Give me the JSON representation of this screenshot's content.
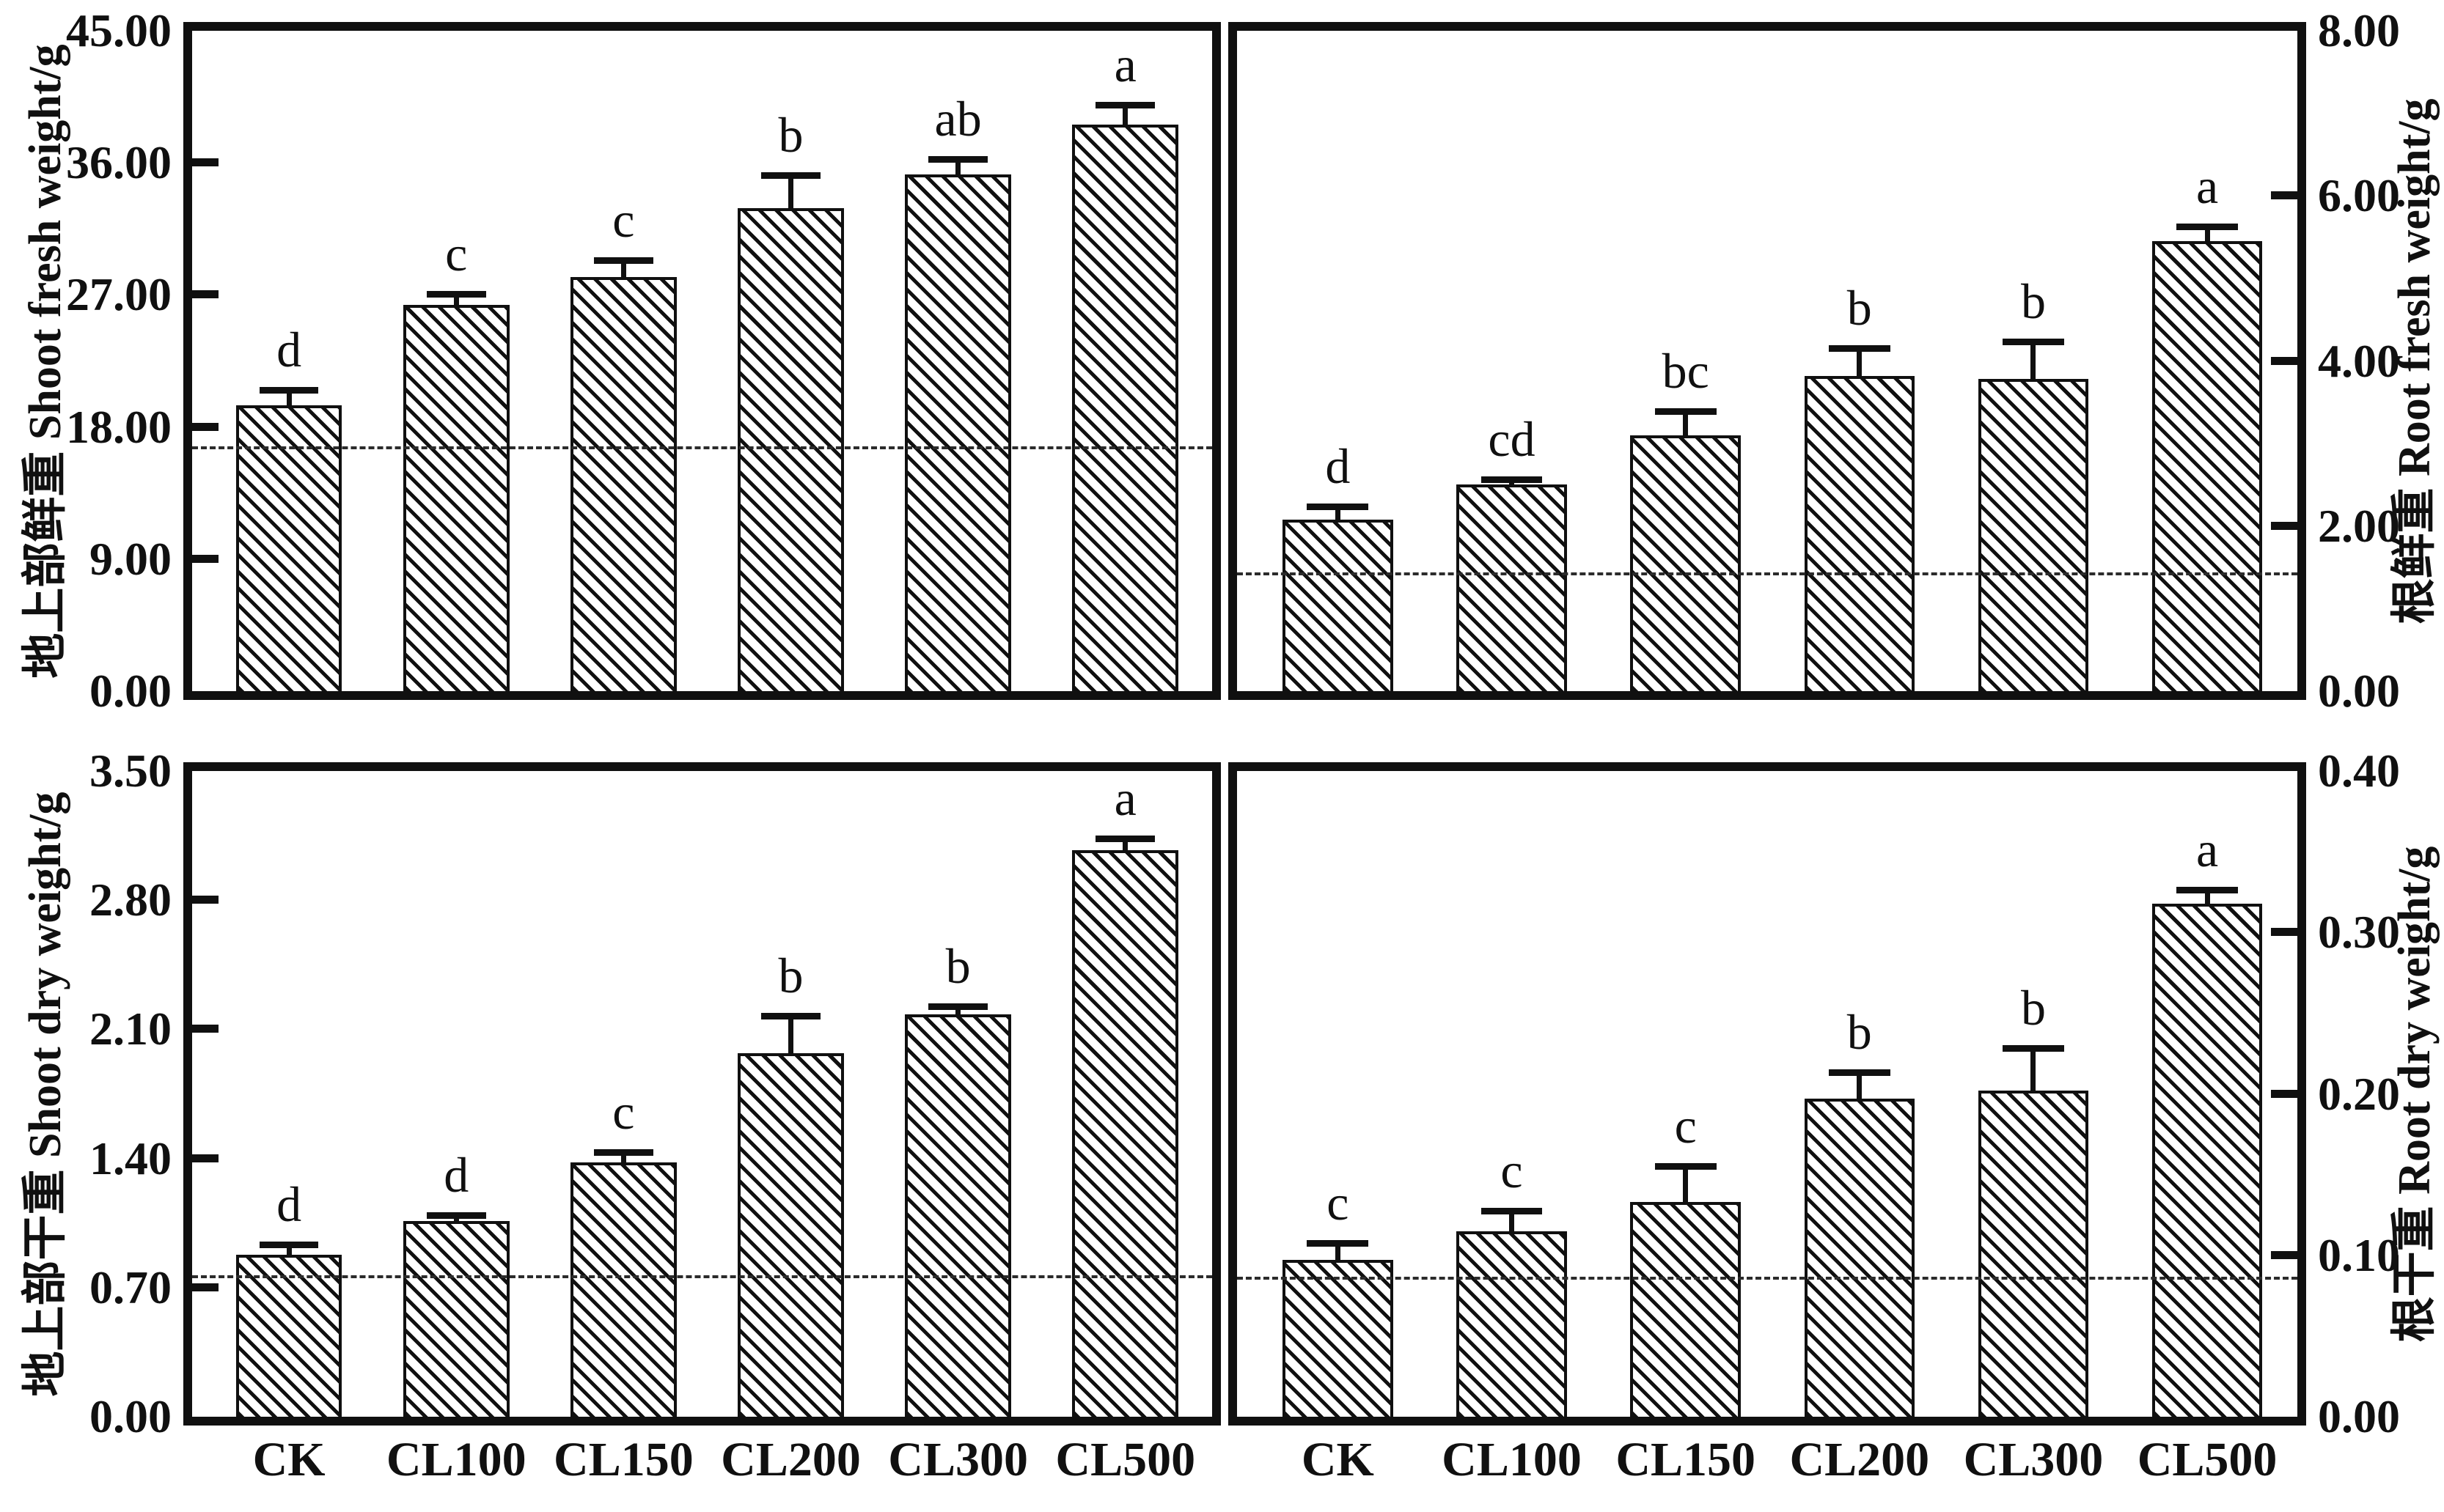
{
  "figure_title": "",
  "treatments_note": "x-axis treatment groups shared by all four panels",
  "chart_data": [
    {
      "type": "bar",
      "panel": "top-left",
      "ylabel": "地上部鲜重 Shoot fresh weight/g",
      "yaxis_side": "left",
      "ylim": [
        0,
        45
      ],
      "yticks": [
        0,
        9,
        18,
        27,
        36,
        45
      ],
      "ytick_labels": [
        "0.00",
        "9.00",
        "18.00",
        "27.00",
        "36.00",
        "45.00"
      ],
      "categories": [
        "CK",
        "CL100",
        "CL150",
        "CL200",
        "CL300",
        "CL500"
      ],
      "values": [
        19.5,
        26.3,
        28.2,
        32.9,
        35.2,
        38.6
      ],
      "error_bars": [
        1.0,
        0.7,
        1.1,
        2.2,
        1.0,
        1.3
      ],
      "sig_letters": [
        "d",
        "c",
        "c",
        "b",
        "ab",
        "a"
      ],
      "dashed_line": 16.5,
      "grid": false,
      "show_xticklabels": false
    },
    {
      "type": "bar",
      "panel": "top-right",
      "ylabel": "根鲜重 Root fresh weight/g",
      "yaxis_side": "right",
      "ylim": [
        0,
        8
      ],
      "yticks": [
        0,
        2,
        4,
        6,
        8
      ],
      "ytick_labels": [
        "0.00",
        "2.00",
        "4.00",
        "6.00",
        "8.00"
      ],
      "categories": [
        "CK",
        "CL100",
        "CL150",
        "CL200",
        "CL300",
        "CL500"
      ],
      "values": [
        2.08,
        2.5,
        3.1,
        3.82,
        3.78,
        5.45
      ],
      "error_bars": [
        0.15,
        0.06,
        0.28,
        0.33,
        0.45,
        0.17
      ],
      "sig_letters": [
        "d",
        "cd",
        "bc",
        "b",
        "b",
        "a"
      ],
      "dashed_line": 1.4,
      "grid": false,
      "show_xticklabels": false
    },
    {
      "type": "bar",
      "panel": "bottom-left",
      "ylabel": "地上部干重 Shoot dry weight/g",
      "yaxis_side": "left",
      "ylim": [
        0,
        3.5
      ],
      "yticks": [
        0,
        0.7,
        1.4,
        2.1,
        2.8,
        3.5
      ],
      "ytick_labels": [
        "0.00",
        "0.70",
        "1.40",
        "2.10",
        "2.80",
        "3.50"
      ],
      "categories": [
        "CK",
        "CL100",
        "CL150",
        "CL200",
        "CL300",
        "CL500"
      ],
      "values": [
        0.88,
        1.06,
        1.38,
        1.97,
        2.18,
        3.07
      ],
      "error_bars": [
        0.05,
        0.03,
        0.05,
        0.2,
        0.04,
        0.06
      ],
      "sig_letters": [
        "d",
        "d",
        "c",
        "b",
        "b",
        "a"
      ],
      "dashed_line": 0.75,
      "grid": false,
      "show_xticklabels": true
    },
    {
      "type": "bar",
      "panel": "bottom-right",
      "ylabel": "根干重 Root dry weight/g",
      "yaxis_side": "right",
      "ylim": [
        0,
        0.4
      ],
      "yticks": [
        0,
        0.1,
        0.2,
        0.3,
        0.4
      ],
      "ytick_labels": [
        "0.00",
        "0.10",
        "0.20",
        "0.30",
        "0.40"
      ],
      "categories": [
        "CK",
        "CL100",
        "CL150",
        "CL200",
        "CL300",
        "CL500"
      ],
      "values": [
        0.097,
        0.115,
        0.133,
        0.197,
        0.202,
        0.318
      ],
      "error_bars": [
        0.01,
        0.012,
        0.022,
        0.016,
        0.026,
        0.008
      ],
      "sig_letters": [
        "c",
        "c",
        "c",
        "b",
        "b",
        "a"
      ],
      "dashed_line": 0.085,
      "grid": false,
      "show_xticklabels": true
    }
  ]
}
